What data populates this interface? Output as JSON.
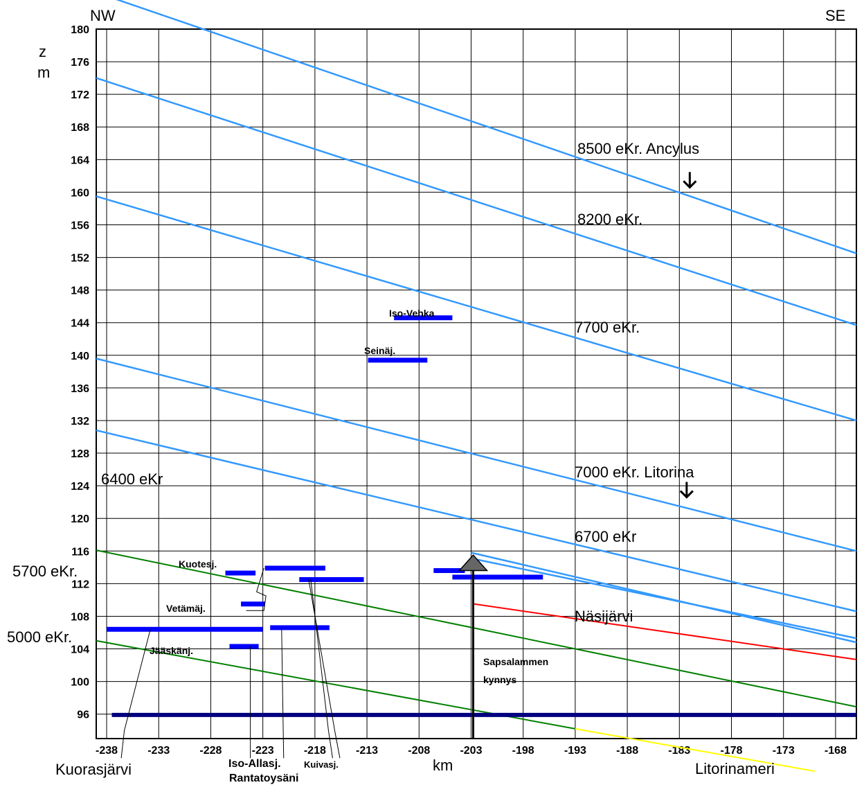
{
  "chart_data": {
    "type": "line",
    "title": "",
    "orientation": {
      "left": "NW",
      "right": "SE"
    },
    "ylabel_z": "z",
    "ylabel_m": "m",
    "xlabel": "km",
    "xlim": [
      -239,
      -166
    ],
    "ylim": [
      93,
      180
    ],
    "x_ticks": [
      -238,
      -233,
      -228,
      -223,
      -218,
      -213,
      -208,
      -203,
      -198,
      -193,
      -188,
      -183,
      -178,
      -173,
      -168
    ],
    "y_ticks": [
      180,
      176,
      172,
      168,
      164,
      160,
      156,
      152,
      148,
      144,
      140,
      136,
      132,
      128,
      124,
      120,
      116,
      112,
      108,
      104,
      100,
      96
    ],
    "grid": true,
    "shorelines": [
      {
        "label": "8500 eKr. Ancylus",
        "color": "#3399ff",
        "x": [
          -239,
          -166
        ],
        "y": [
          184.5,
          152.5
        ]
      },
      {
        "label": "8200 eKr.",
        "color": "#3399ff",
        "x": [
          -239,
          -166
        ],
        "y": [
          174,
          143.7
        ]
      },
      {
        "label": "7700 eKr.",
        "color": "#3399ff",
        "x": [
          -239,
          -166
        ],
        "y": [
          159.5,
          132
        ]
      },
      {
        "label": "7000 eKr. Litorina",
        "color": "#3399ff",
        "x": [
          -239,
          -166
        ],
        "y": [
          139.6,
          116
        ]
      },
      {
        "label": "6700 eKr",
        "color": "#3399ff",
        "x": [
          -239,
          -166
        ],
        "y": [
          130.8,
          108.6
        ]
      },
      {
        "label": "6400 eKr",
        "color": "#3399ff",
        "x": [
          -203,
          -166
        ],
        "y": [
          115.8,
          104.8
        ]
      },
      {
        "label": "",
        "color": "#3399ff",
        "x": [
          -203,
          -166
        ],
        "y": [
          115.1,
          105.3
        ]
      },
      {
        "label": "5700 eKr.",
        "color": "#008000",
        "x": [
          -239,
          -166
        ],
        "y": [
          116.1,
          96.9
        ]
      },
      {
        "label": "5000 eKr.",
        "color": "#008000",
        "x": [
          -239,
          -193
        ],
        "y": [
          105,
          94.2
        ]
      },
      {
        "label": "Litorinameri",
        "color": "#ffff00",
        "x": [
          -193,
          -170
        ],
        "y": [
          94.2,
          89
        ]
      },
      {
        "label": "Näsijärvi",
        "color": "#ff0000",
        "x": [
          -202.7,
          -166
        ],
        "y": [
          109.5,
          102.7
        ]
      },
      {
        "label": "",
        "color": "#000080",
        "x": [
          -237.5,
          -166
        ],
        "y": [
          95.9,
          95.9
        ]
      }
    ],
    "lakes": [
      {
        "label": "Iso-Vehka",
        "x": [
          -210.4,
          -204.8
        ],
        "y": 144.6
      },
      {
        "label": "Seinäj.",
        "x": [
          -212.9,
          -207.2
        ],
        "y": 139.4
      },
      {
        "label": "Kuotesj.",
        "x": [
          -226.6,
          -223.7
        ],
        "y": 113.3
      },
      {
        "label": "",
        "x": [
          -222.8,
          -217
        ],
        "y": 113.9
      },
      {
        "label": "",
        "x": [
          -219.5,
          -213.3
        ],
        "y": 112.5
      },
      {
        "label": "",
        "x": [
          -206.6,
          -203.6
        ],
        "y": 113.6
      },
      {
        "label": "",
        "x": [
          -204.8,
          -196.1
        ],
        "y": 112.8
      },
      {
        "label": "Vetämäj.",
        "x": [
          -225.1,
          -222.8
        ],
        "y": 109.5
      },
      {
        "label": "",
        "x": [
          -238,
          -223
        ],
        "y": 106.4
      },
      {
        "label": "",
        "x": [
          -222.3,
          -216.6
        ],
        "y": 106.6
      },
      {
        "label": "Jääskänj.",
        "x": [
          -226.2,
          -223.4
        ],
        "y": 104.3
      }
    ],
    "annotations": {
      "sill": "Sapsalammen\nkynnys",
      "lakes_below": [
        "Kuorasjärvi",
        "Iso-Allasj.",
        "Kuivasj.",
        "Rantatoysäni"
      ],
      "sea": "Litorinameri"
    }
  }
}
